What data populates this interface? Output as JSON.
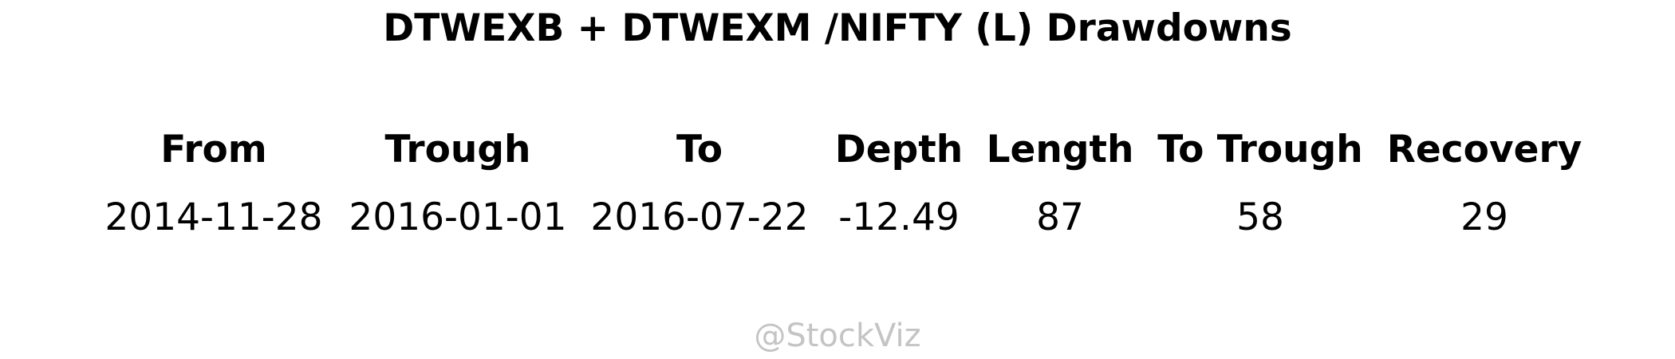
{
  "chart_data": {
    "type": "table",
    "title": "DTWEXB + DTWEXM /NIFTY (L) Drawdowns",
    "columns": [
      "From",
      "Trough",
      "To",
      "Depth",
      "Length",
      "To Trough",
      "Recovery"
    ],
    "rows": [
      [
        "2014-11-28",
        "2016-01-01",
        "2016-07-22",
        "-12.49",
        "87",
        "58",
        "29"
      ]
    ]
  },
  "watermark": "@StockViz",
  "colors": {
    "text": "#000000",
    "watermark": "#c4c4c4",
    "background": "#ffffff"
  }
}
